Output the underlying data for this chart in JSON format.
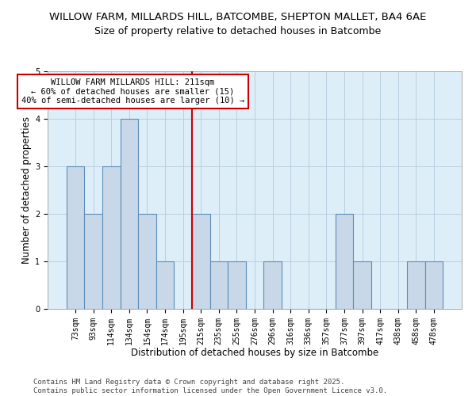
{
  "title_line1": "WILLOW FARM, MILLARDS HILL, BATCOMBE, SHEPTON MALLET, BA4 6AE",
  "title_line2": "Size of property relative to detached houses in Batcombe",
  "xlabel": "Distribution of detached houses by size in Batcombe",
  "ylabel": "Number of detached properties",
  "categories": [
    "73sqm",
    "93sqm",
    "114sqm",
    "134sqm",
    "154sqm",
    "174sqm",
    "195sqm",
    "215sqm",
    "235sqm",
    "255sqm",
    "276sqm",
    "296sqm",
    "316sqm",
    "336sqm",
    "357sqm",
    "377sqm",
    "397sqm",
    "417sqm",
    "438sqm",
    "458sqm",
    "478sqm"
  ],
  "values": [
    3,
    2,
    3,
    4,
    2,
    1,
    0,
    2,
    1,
    1,
    0,
    1,
    0,
    0,
    0,
    2,
    1,
    0,
    0,
    1,
    1
  ],
  "bar_color": "#c8d8e8",
  "bar_edge_color": "#5b8db8",
  "vline_x_index": 7,
  "vline_color": "#cc0000",
  "annotation_text": "WILLOW FARM MILLARDS HILL: 211sqm\n← 60% of detached houses are smaller (15)\n40% of semi-detached houses are larger (10) →",
  "annotation_box_color": "#cc0000",
  "annotation_bg_color": "#ffffff",
  "ylim": [
    0,
    5
  ],
  "yticks": [
    0,
    1,
    2,
    3,
    4,
    5
  ],
  "footer_text": "Contains HM Land Registry data © Crown copyright and database right 2025.\nContains public sector information licensed under the Open Government Licence v3.0.",
  "bg_color": "#ffffff",
  "plot_bg_color": "#ddeef8",
  "grid_color": "#b8cfe0",
  "title_fontsize": 9.5,
  "subtitle_fontsize": 9,
  "label_fontsize": 8.5,
  "tick_fontsize": 7,
  "annotation_fontsize": 7.5,
  "footer_fontsize": 6.5
}
